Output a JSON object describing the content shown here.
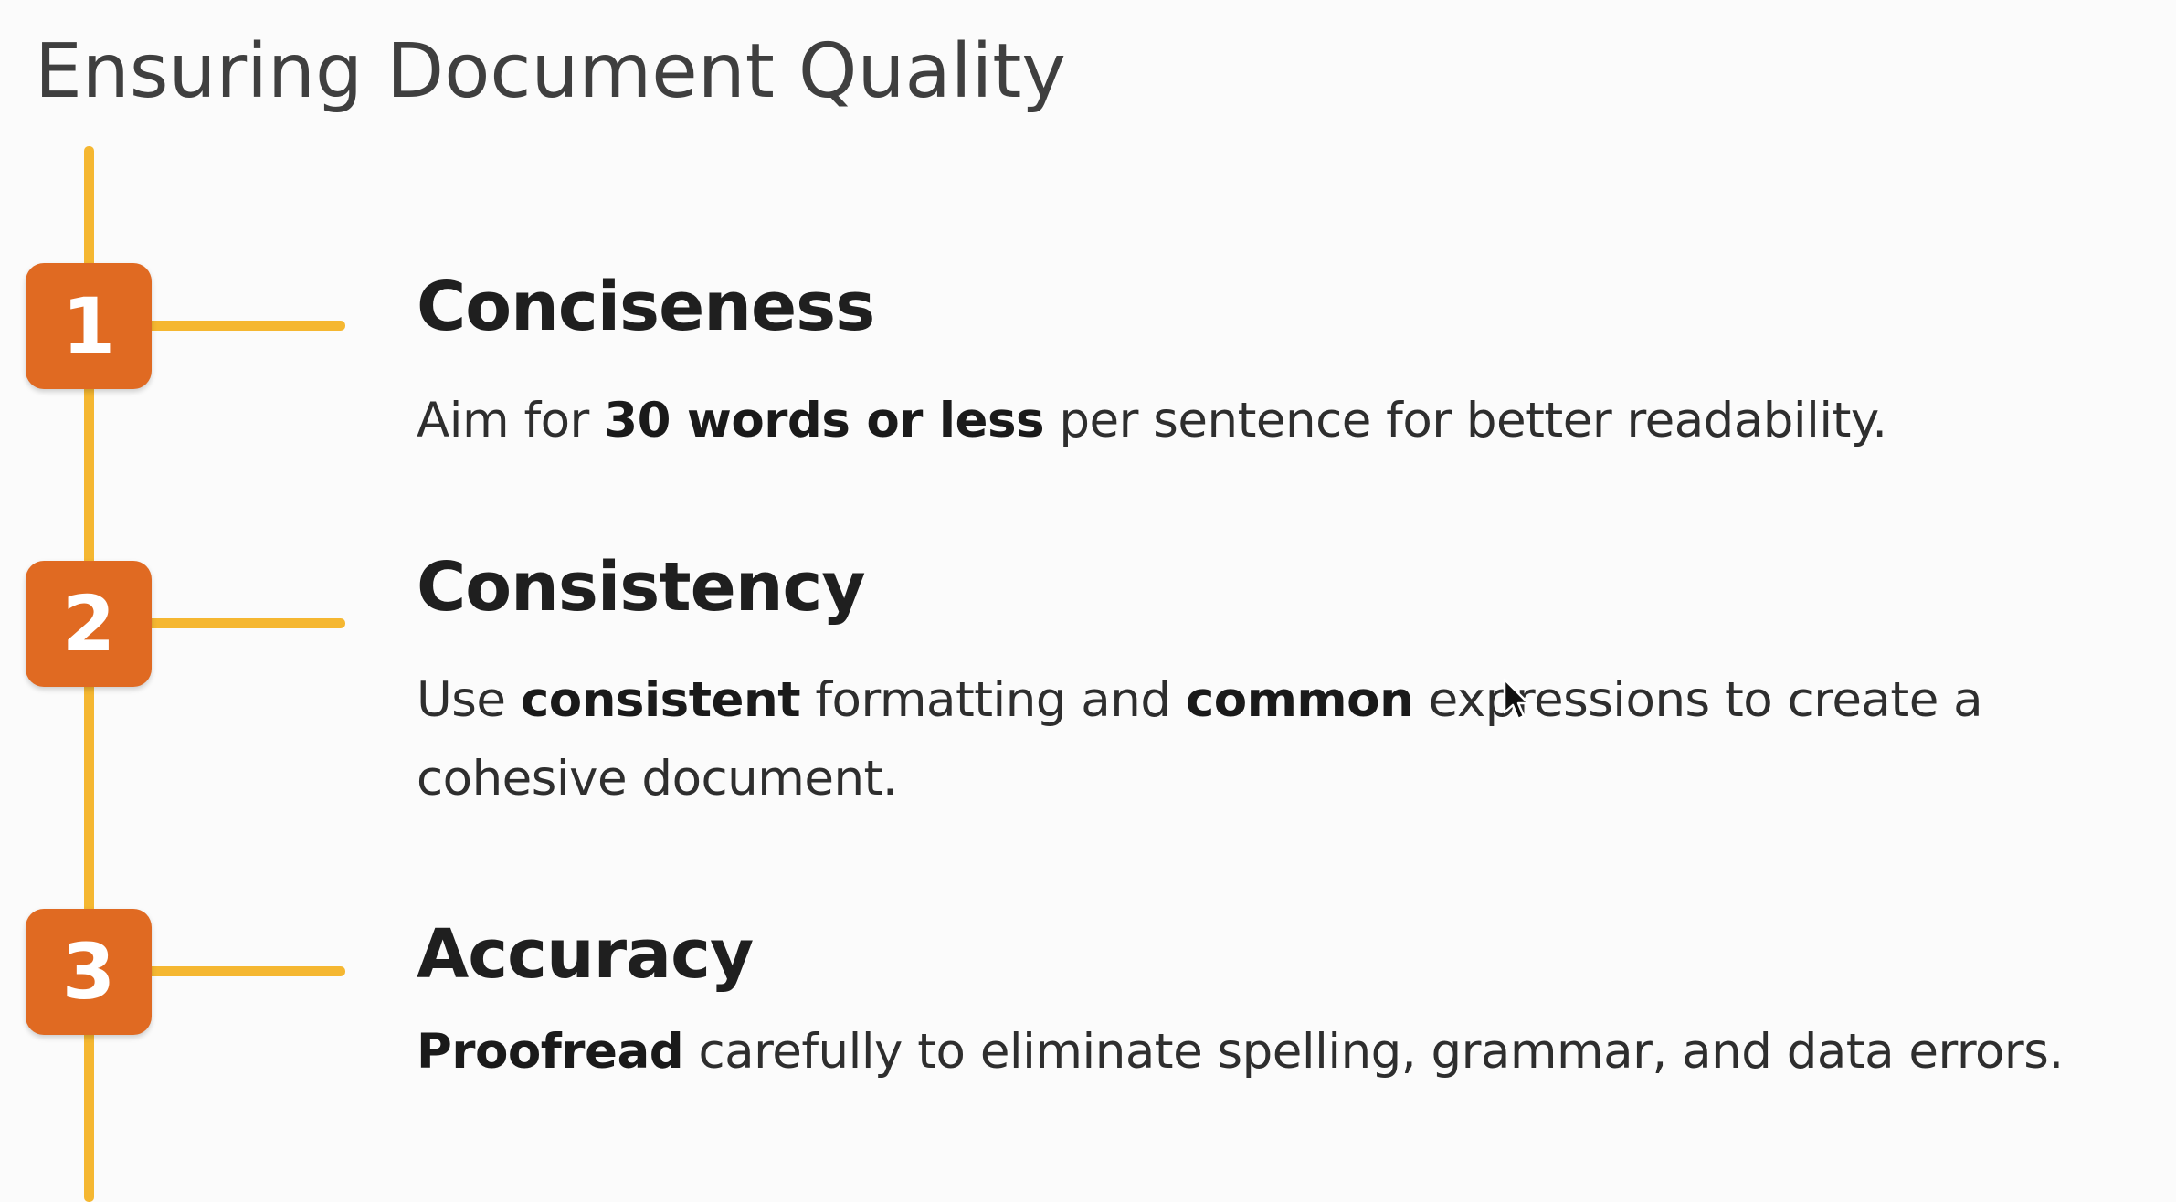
{
  "title": "Ensuring Document Quality",
  "colors": {
    "accent_line": "#f5b731",
    "badge": "#e06a22"
  },
  "items": [
    {
      "number": "1",
      "heading": "Conciseness",
      "desc": [
        {
          "text": "Aim for ",
          "bold": false
        },
        {
          "text": "30 words or less",
          "bold": true
        },
        {
          "text": " per sentence for better readability.",
          "bold": false
        }
      ]
    },
    {
      "number": "2",
      "heading": "Consistency",
      "desc": [
        {
          "text": "Use ",
          "bold": false
        },
        {
          "text": "consistent",
          "bold": true
        },
        {
          "text": " formatting and ",
          "bold": false
        },
        {
          "text": "common",
          "bold": true
        },
        {
          "text": " expressions to create a cohesive document.",
          "bold": false
        }
      ]
    },
    {
      "number": "3",
      "heading": "Accuracy",
      "desc": [
        {
          "text": "Proofread",
          "bold": true
        },
        {
          "text": " carefully to eliminate spelling, grammar, and data errors.",
          "bold": false
        }
      ]
    }
  ],
  "cursor_icon": "mouse-pointer-icon"
}
